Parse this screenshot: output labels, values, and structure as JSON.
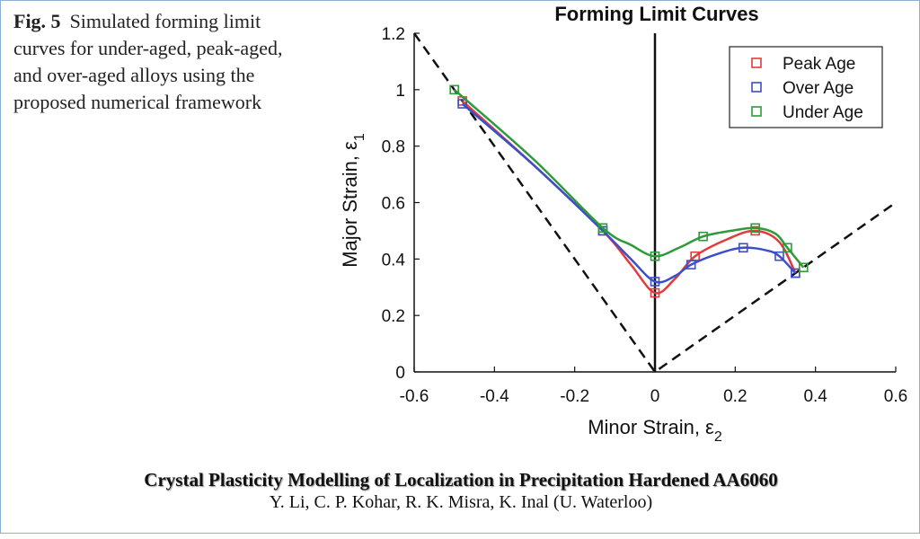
{
  "caption": {
    "label": "Fig. 5",
    "text": "Simulated forming limit curves for under-aged, peak-aged, and over-aged alloys using the proposed numerical framework"
  },
  "footer": {
    "title": "Crystal Plasticity Modelling of Localization in Precipitation Hardened AA6060",
    "authors": "Y. Li, C. P. Kohar, R. K. Misra, K. Inal (U. Waterloo)"
  },
  "chart_data": {
    "type": "line",
    "title": "Forming Limit Curves",
    "xlabel": "Minor Strain, ε",
    "xlabel_sub": "2",
    "ylabel": "Major Strain, ε",
    "ylabel_sub": "1",
    "xlim": [
      -0.6,
      0.6
    ],
    "ylim": [
      0,
      1.2
    ],
    "xticks": [
      "-0.6",
      "-0.4",
      "-0.2",
      "0",
      "0.2",
      "0.4",
      "0.6"
    ],
    "yticks": [
      "0",
      "0.2",
      "0.4",
      "0.6",
      "0.8",
      "1",
      "1.2"
    ],
    "grid": false,
    "legend_position": "top-right",
    "reference_lines": [
      {
        "style": "dashed",
        "points": [
          [
            -0.6,
            1.2
          ],
          [
            0,
            0
          ],
          [
            0.6,
            0.6
          ]
        ]
      },
      {
        "style": "solid",
        "points": [
          [
            0,
            0
          ],
          [
            0,
            1.2
          ]
        ]
      }
    ],
    "series": [
      {
        "name": "Peak Age",
        "color": "#e03c3c",
        "marker": "square",
        "points": [
          [
            -0.48,
            0.96
          ],
          [
            -0.13,
            0.5
          ],
          [
            0,
            0.28
          ],
          [
            0.1,
            0.41
          ],
          [
            0.25,
            0.5
          ],
          [
            0.35,
            0.35
          ]
        ],
        "curve": [
          [
            -0.48,
            0.96
          ],
          [
            -0.3,
            0.73
          ],
          [
            -0.13,
            0.5
          ],
          [
            -0.06,
            0.38
          ],
          [
            0,
            0.28
          ],
          [
            0.05,
            0.33
          ],
          [
            0.1,
            0.41
          ],
          [
            0.18,
            0.47
          ],
          [
            0.25,
            0.5
          ],
          [
            0.31,
            0.46
          ],
          [
            0.35,
            0.35
          ]
        ]
      },
      {
        "name": "Over Age",
        "color": "#3c4fc8",
        "marker": "square",
        "points": [
          [
            -0.48,
            0.95
          ],
          [
            -0.13,
            0.5
          ],
          [
            0,
            0.32
          ],
          [
            0.09,
            0.38
          ],
          [
            0.22,
            0.44
          ],
          [
            0.31,
            0.41
          ],
          [
            0.35,
            0.35
          ]
        ],
        "curve": [
          [
            -0.48,
            0.95
          ],
          [
            -0.3,
            0.73
          ],
          [
            -0.13,
            0.5
          ],
          [
            -0.06,
            0.4
          ],
          [
            0,
            0.32
          ],
          [
            0.05,
            0.34
          ],
          [
            0.09,
            0.38
          ],
          [
            0.16,
            0.42
          ],
          [
            0.22,
            0.44
          ],
          [
            0.28,
            0.43
          ],
          [
            0.31,
            0.41
          ],
          [
            0.35,
            0.35
          ]
        ]
      },
      {
        "name": "Under Age",
        "color": "#2e9a3a",
        "marker": "square",
        "points": [
          [
            -0.5,
            1.0
          ],
          [
            -0.13,
            0.51
          ],
          [
            0,
            0.41
          ],
          [
            0.12,
            0.48
          ],
          [
            0.25,
            0.51
          ],
          [
            0.33,
            0.44
          ],
          [
            0.37,
            0.37
          ]
        ],
        "curve": [
          [
            -0.5,
            1.0
          ],
          [
            -0.3,
            0.75
          ],
          [
            -0.13,
            0.51
          ],
          [
            -0.06,
            0.45
          ],
          [
            0,
            0.41
          ],
          [
            0.06,
            0.44
          ],
          [
            0.12,
            0.48
          ],
          [
            0.19,
            0.5
          ],
          [
            0.25,
            0.51
          ],
          [
            0.3,
            0.49
          ],
          [
            0.33,
            0.44
          ],
          [
            0.37,
            0.37
          ]
        ]
      }
    ]
  }
}
